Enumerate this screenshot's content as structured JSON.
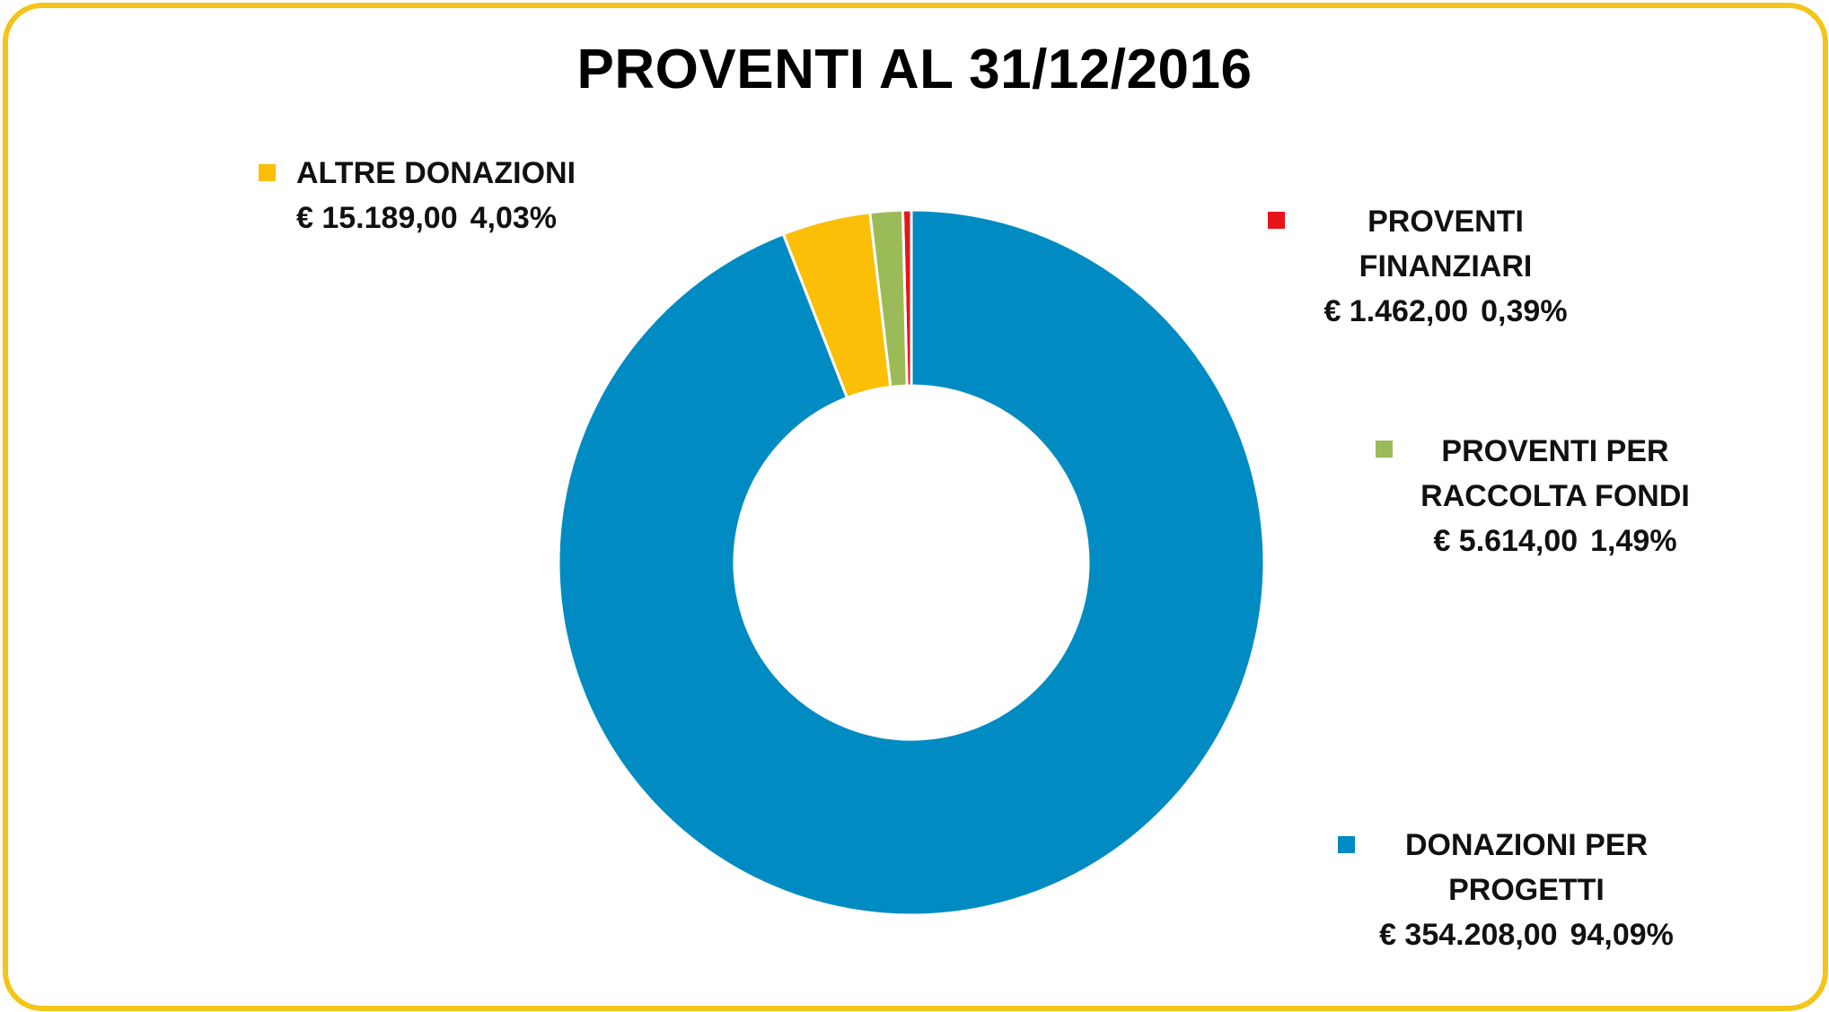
{
  "chart_data": {
    "type": "pie",
    "donut": true,
    "title": "PROVENTI AL 31/12/2016",
    "start_angle_deg": 0,
    "direction": "counter-clockwise",
    "slices": [
      {
        "label": [
          "PROVENTI",
          "FINANZIARI"
        ],
        "amount": "€ 1.462,00",
        "percent_label": "0,39%",
        "value": 1462.0,
        "percent": 0.39,
        "color": "#e8141b"
      },
      {
        "label": [
          "PROVENTI PER",
          "RACCOLTA FONDI"
        ],
        "amount": "€ 5.614,00",
        "percent_label": "1,49%",
        "value": 5614.0,
        "percent": 1.49,
        "color": "#9bbb59"
      },
      {
        "label": [
          "ALTRE DONAZIONI"
        ],
        "amount": "€ 15.189,00",
        "percent_label": "4,03%",
        "value": 15189.0,
        "percent": 4.03,
        "color": "#fbbf07"
      },
      {
        "label": [
          "DONAZIONI PER",
          "PROGETTI"
        ],
        "amount": "€ 354.208,00",
        "percent_label": "94,09%",
        "value": 354208.0,
        "percent": 94.09,
        "color": "#008bc2"
      }
    ]
  }
}
